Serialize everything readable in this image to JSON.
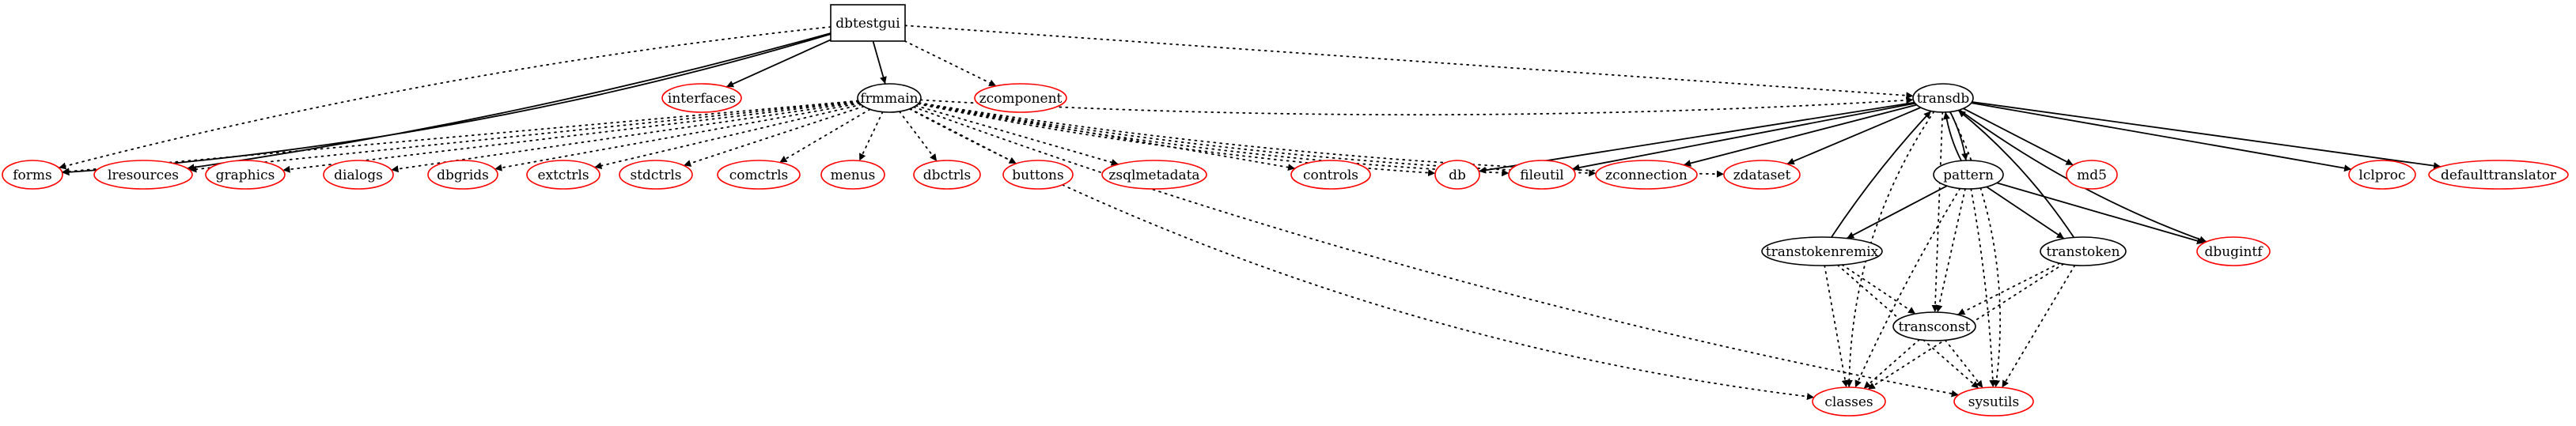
{
  "diagram": {
    "colors": {
      "external": "#ff0000",
      "internal": "#000000",
      "edge": "#000000",
      "background": "#ffffff"
    },
    "nodes": [
      {
        "id": "dbtestgui",
        "label": "dbtestgui",
        "shape": "box",
        "kind": "internal"
      },
      {
        "id": "interfaces",
        "label": "interfaces",
        "shape": "ellipse",
        "kind": "external"
      },
      {
        "id": "frmmain",
        "label": "frmmain",
        "shape": "ellipse",
        "kind": "internal"
      },
      {
        "id": "zcomponent",
        "label": "zcomponent",
        "shape": "ellipse",
        "kind": "external"
      },
      {
        "id": "transdb",
        "label": "transdb",
        "shape": "ellipse",
        "kind": "internal"
      },
      {
        "id": "forms",
        "label": "forms",
        "shape": "ellipse",
        "kind": "external"
      },
      {
        "id": "lresources",
        "label": "lresources",
        "shape": "ellipse",
        "kind": "external"
      },
      {
        "id": "graphics",
        "label": "graphics",
        "shape": "ellipse",
        "kind": "external"
      },
      {
        "id": "dialogs",
        "label": "dialogs",
        "shape": "ellipse",
        "kind": "external"
      },
      {
        "id": "dbgrids",
        "label": "dbgrids",
        "shape": "ellipse",
        "kind": "external"
      },
      {
        "id": "extctrls",
        "label": "extctrls",
        "shape": "ellipse",
        "kind": "external"
      },
      {
        "id": "stdctrls",
        "label": "stdctrls",
        "shape": "ellipse",
        "kind": "external"
      },
      {
        "id": "comctrls",
        "label": "comctrls",
        "shape": "ellipse",
        "kind": "external"
      },
      {
        "id": "menus",
        "label": "menus",
        "shape": "ellipse",
        "kind": "external"
      },
      {
        "id": "dbctrls",
        "label": "dbctrls",
        "shape": "ellipse",
        "kind": "external"
      },
      {
        "id": "buttons",
        "label": "buttons",
        "shape": "ellipse",
        "kind": "external"
      },
      {
        "id": "zsqlmetadata",
        "label": "zsqlmetadata",
        "shape": "ellipse",
        "kind": "external"
      },
      {
        "id": "controls",
        "label": "controls",
        "shape": "ellipse",
        "kind": "external"
      },
      {
        "id": "db",
        "label": "db",
        "shape": "ellipse",
        "kind": "external"
      },
      {
        "id": "fileutil",
        "label": "fileutil",
        "shape": "ellipse",
        "kind": "external"
      },
      {
        "id": "zconnection",
        "label": "zconnection",
        "shape": "ellipse",
        "kind": "external"
      },
      {
        "id": "zdataset",
        "label": "zdataset",
        "shape": "ellipse",
        "kind": "external"
      },
      {
        "id": "pattern",
        "label": "pattern",
        "shape": "ellipse",
        "kind": "internal"
      },
      {
        "id": "md5",
        "label": "md5",
        "shape": "ellipse",
        "kind": "external"
      },
      {
        "id": "lclproc",
        "label": "lclproc",
        "shape": "ellipse",
        "kind": "external"
      },
      {
        "id": "defaulttranslator",
        "label": "defaulttranslator",
        "shape": "ellipse",
        "kind": "external"
      },
      {
        "id": "transtokenremix",
        "label": "transtokenremix",
        "shape": "ellipse",
        "kind": "internal"
      },
      {
        "id": "transtoken",
        "label": "transtoken",
        "shape": "ellipse",
        "kind": "internal"
      },
      {
        "id": "dbugintf",
        "label": "dbugintf",
        "shape": "ellipse",
        "kind": "external"
      },
      {
        "id": "transconst",
        "label": "transconst",
        "shape": "ellipse",
        "kind": "internal"
      },
      {
        "id": "classes",
        "label": "classes",
        "shape": "ellipse",
        "kind": "external"
      },
      {
        "id": "sysutils",
        "label": "sysutils",
        "shape": "ellipse",
        "kind": "external"
      }
    ],
    "edges": [
      {
        "from": "dbtestgui",
        "to": "interfaces",
        "style": "solid"
      },
      {
        "from": "dbtestgui",
        "to": "frmmain",
        "style": "solid"
      },
      {
        "from": "dbtestgui",
        "to": "forms",
        "style": "solid"
      },
      {
        "from": "dbtestgui",
        "to": "lresources",
        "style": "solid"
      },
      {
        "from": "dbtestgui",
        "to": "zcomponent",
        "style": "dotted"
      },
      {
        "from": "dbtestgui",
        "to": "transdb",
        "style": "dotted"
      },
      {
        "from": "dbtestgui",
        "to": "forms",
        "style": "dotted"
      },
      {
        "from": "frmmain",
        "to": "forms",
        "style": "dotted"
      },
      {
        "from": "frmmain",
        "to": "lresources",
        "style": "dotted"
      },
      {
        "from": "frmmain",
        "to": "graphics",
        "style": "dotted"
      },
      {
        "from": "frmmain",
        "to": "dialogs",
        "style": "dotted"
      },
      {
        "from": "frmmain",
        "to": "dbgrids",
        "style": "dotted"
      },
      {
        "from": "frmmain",
        "to": "extctrls",
        "style": "dotted"
      },
      {
        "from": "frmmain",
        "to": "stdctrls",
        "style": "dotted"
      },
      {
        "from": "frmmain",
        "to": "comctrls",
        "style": "dotted"
      },
      {
        "from": "frmmain",
        "to": "menus",
        "style": "dotted"
      },
      {
        "from": "frmmain",
        "to": "dbctrls",
        "style": "dotted"
      },
      {
        "from": "frmmain",
        "to": "buttons",
        "style": "dotted"
      },
      {
        "from": "frmmain",
        "to": "zsqlmetadata",
        "style": "dotted"
      },
      {
        "from": "frmmain",
        "to": "controls",
        "style": "dotted"
      },
      {
        "from": "frmmain",
        "to": "db",
        "style": "dotted"
      },
      {
        "from": "frmmain",
        "to": "fileutil",
        "style": "dotted"
      },
      {
        "from": "frmmain",
        "to": "zconnection",
        "style": "dotted"
      },
      {
        "from": "frmmain",
        "to": "zdataset",
        "style": "dotted"
      },
      {
        "from": "frmmain",
        "to": "transdb",
        "style": "dotted"
      },
      {
        "from": "frmmain",
        "to": "classes",
        "style": "dotted"
      },
      {
        "from": "frmmain",
        "to": "sysutils",
        "style": "dotted"
      },
      {
        "from": "transdb",
        "to": "db",
        "style": "solid"
      },
      {
        "from": "transdb",
        "to": "fileutil",
        "style": "solid"
      },
      {
        "from": "transdb",
        "to": "zconnection",
        "style": "solid"
      },
      {
        "from": "transdb",
        "to": "zdataset",
        "style": "solid"
      },
      {
        "from": "transdb",
        "to": "pattern",
        "style": "solid"
      },
      {
        "from": "transdb",
        "to": "md5",
        "style": "solid"
      },
      {
        "from": "transdb",
        "to": "dbugintf",
        "style": "solid"
      },
      {
        "from": "transdb",
        "to": "lclproc",
        "style": "solid"
      },
      {
        "from": "transdb",
        "to": "defaulttranslator",
        "style": "solid"
      },
      {
        "from": "transdb",
        "to": "transconst",
        "style": "dotted"
      },
      {
        "from": "transdb",
        "to": "classes",
        "style": "dotted"
      },
      {
        "from": "transdb",
        "to": "sysutils",
        "style": "dotted"
      },
      {
        "from": "pattern",
        "to": "transdb",
        "style": "solid"
      },
      {
        "from": "pattern",
        "to": "transtokenremix",
        "style": "solid"
      },
      {
        "from": "pattern",
        "to": "transtoken",
        "style": "solid"
      },
      {
        "from": "pattern",
        "to": "dbugintf",
        "style": "solid"
      },
      {
        "from": "pattern",
        "to": "transconst",
        "style": "dotted"
      },
      {
        "from": "pattern",
        "to": "classes",
        "style": "dotted"
      },
      {
        "from": "pattern",
        "to": "sysutils",
        "style": "dotted"
      },
      {
        "from": "transtokenremix",
        "to": "transdb",
        "style": "solid"
      },
      {
        "from": "transtokenremix",
        "to": "transconst",
        "style": "dotted"
      },
      {
        "from": "transtokenremix",
        "to": "classes",
        "style": "dotted"
      },
      {
        "from": "transtokenremix",
        "to": "sysutils",
        "style": "dotted"
      },
      {
        "from": "transtoken",
        "to": "transdb",
        "style": "solid"
      },
      {
        "from": "transtoken",
        "to": "transconst",
        "style": "dotted"
      },
      {
        "from": "transtoken",
        "to": "classes",
        "style": "dotted"
      },
      {
        "from": "transtoken",
        "to": "sysutils",
        "style": "dotted"
      },
      {
        "from": "transconst",
        "to": "classes",
        "style": "dotted"
      },
      {
        "from": "transconst",
        "to": "sysutils",
        "style": "dotted"
      }
    ]
  }
}
